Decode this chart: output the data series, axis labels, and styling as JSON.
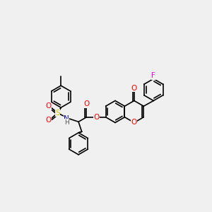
{
  "bg": "#f0f0f0",
  "C": "#000000",
  "O": "#ff0000",
  "N": "#0000cc",
  "S": "#cccc00",
  "F": "#ff00ff",
  "H": "#555555",
  "lw": 1.2,
  "lw2": 0.85,
  "fs": 7.5
}
